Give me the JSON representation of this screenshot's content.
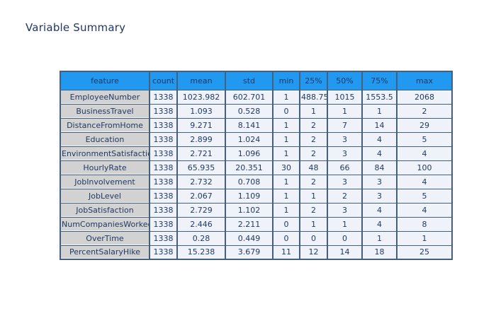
{
  "page": {
    "title": "Variable Summary"
  },
  "colors": {
    "title_text": "#1F3864",
    "header_bg": "#2299F0",
    "header_text": "#1F3864",
    "body_text": "#203A64",
    "label_bg": "#D2D2D2",
    "cell_bg": "#EFF3F9",
    "border": "#44607C",
    "page_bg": "#FFFFFF"
  },
  "table": {
    "headers": [
      "feature",
      "count",
      "mean",
      "std",
      "min",
      "25%",
      "50%",
      "75%",
      "max"
    ],
    "rows": [
      [
        "EmployeeNumber",
        "1338",
        "1023.982",
        "602.701",
        "1",
        "488.75",
        "1015",
        "1553.5",
        "2068"
      ],
      [
        "BusinessTravel",
        "1338",
        "1.093",
        "0.528",
        "0",
        "1",
        "1",
        "1",
        "2"
      ],
      [
        "DistanceFromHome",
        "1338",
        "9.271",
        "8.141",
        "1",
        "2",
        "7",
        "14",
        "29"
      ],
      [
        "Education",
        "1338",
        "2.899",
        "1.024",
        "1",
        "2",
        "3",
        "4",
        "5"
      ],
      [
        "EnvironmentSatisfaction",
        "1338",
        "2.721",
        "1.096",
        "1",
        "2",
        "3",
        "4",
        "4"
      ],
      [
        "HourlyRate",
        "1338",
        "65.935",
        "20.351",
        "30",
        "48",
        "66",
        "84",
        "100"
      ],
      [
        "JobInvolvement",
        "1338",
        "2.732",
        "0.708",
        "1",
        "2",
        "3",
        "3",
        "4"
      ],
      [
        "JobLevel",
        "1338",
        "2.067",
        "1.109",
        "1",
        "1",
        "2",
        "3",
        "5"
      ],
      [
        "JobSatisfaction",
        "1338",
        "2.729",
        "1.102",
        "1",
        "2",
        "3",
        "4",
        "4"
      ],
      [
        "NumCompaniesWorked",
        "1338",
        "2.446",
        "2.211",
        "0",
        "1",
        "1",
        "4",
        "8"
      ],
      [
        "OverTime",
        "1338",
        "0.28",
        "0.449",
        "0",
        "0",
        "0",
        "1",
        "1"
      ],
      [
        "PercentSalaryHike",
        "1338",
        "15.238",
        "3.679",
        "11",
        "12",
        "14",
        "18",
        "25"
      ]
    ]
  }
}
